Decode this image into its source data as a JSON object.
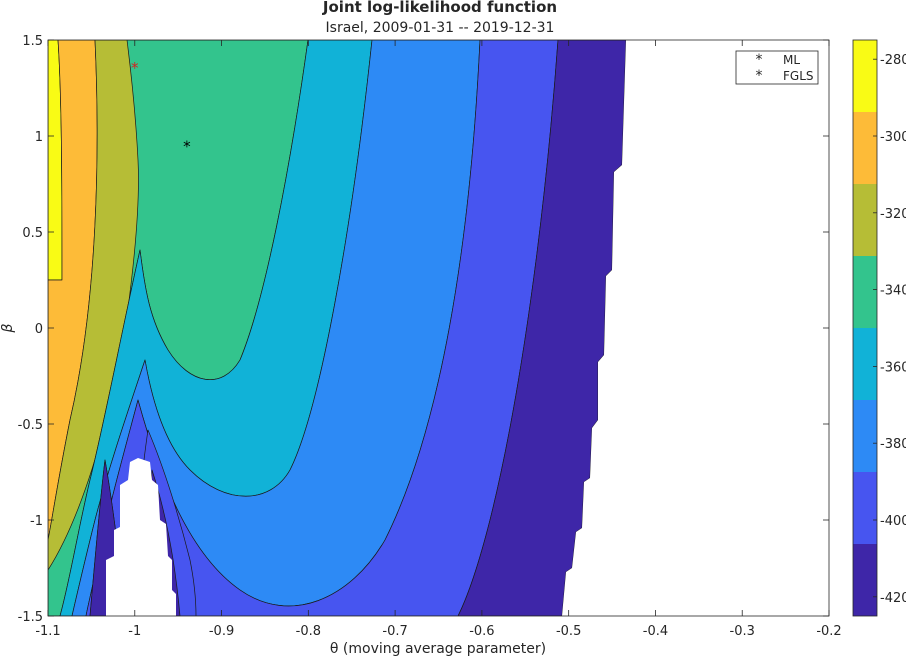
{
  "chart_data": {
    "type": "contour",
    "title": "Joint log-likelihood function",
    "subtitle": "Israel, 2009-01-31 -- 2019-12-31",
    "xlabel": "θ (moving average parameter)",
    "ylabel": "β",
    "xlim": [
      -1.1,
      -0.2
    ],
    "ylim": [
      -1.5,
      1.5
    ],
    "x_ticks": [
      "-1.1",
      "-1",
      "-0.9",
      "-0.8",
      "-0.7",
      "-0.6",
      "-0.5",
      "-0.4",
      "-0.3",
      "-0.2"
    ],
    "y_ticks": [
      "-1.5",
      "-1",
      "-0.5",
      "0",
      "0.5",
      "1",
      "1.5"
    ],
    "colorbar": {
      "range": [
        -425,
        -275
      ],
      "ticks": [
        "-420",
        "-400",
        "-380",
        "-360",
        "-340",
        "-320",
        "-300",
        "-280"
      ],
      "colors": [
        "#3e26a8",
        "#4755f0",
        "#2d8af5",
        "#11b2d7",
        "#33c48d",
        "#b6bd36",
        "#fdbb38",
        "#f9fb15"
      ]
    },
    "contour_levels": [
      -420,
      -400,
      -380,
      -360,
      -340,
      -320,
      -300,
      -280
    ],
    "points": [
      {
        "name": "ML",
        "x": -1.0,
        "y": 1.36,
        "color": "#d62020",
        "marker": "*"
      },
      {
        "name": "FGLS",
        "x": -0.94,
        "y": 0.95,
        "color": "#000000",
        "marker": "*"
      }
    ],
    "legend": {
      "position": "top-right",
      "entries": [
        "ML",
        "FGLS"
      ]
    },
    "grid": false
  }
}
